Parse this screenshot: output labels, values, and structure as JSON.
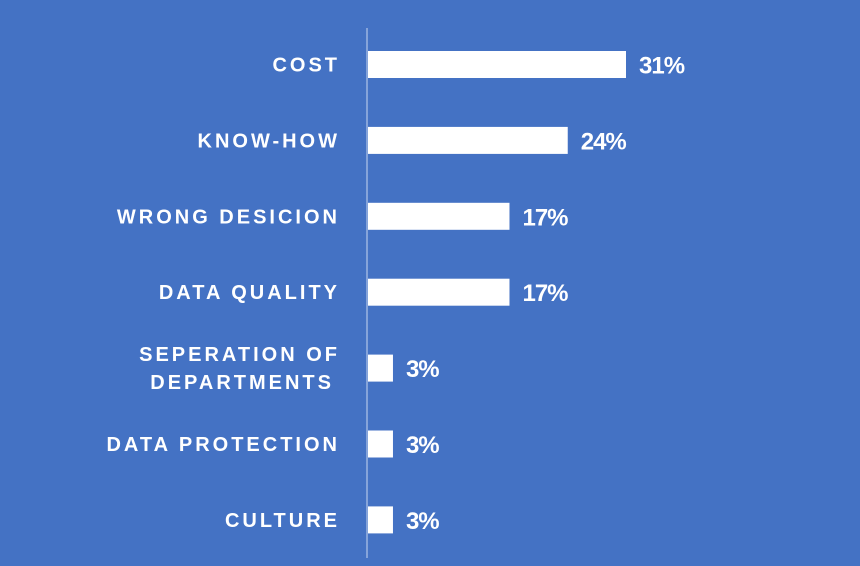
{
  "chart_data": {
    "type": "bar",
    "orientation": "horizontal",
    "categories": [
      [
        "COST"
      ],
      [
        "KNOW-HOW"
      ],
      [
        "WRONG DESICION"
      ],
      [
        "DATA QUALITY"
      ],
      [
        "SEPERATION OF",
        "DEPARTMENTS"
      ],
      [
        "DATA PROTECTION"
      ],
      [
        "CULTURE"
      ]
    ],
    "values": [
      31,
      24,
      17,
      17,
      3,
      3,
      3
    ],
    "value_labels": [
      "31%",
      "24%",
      "17%",
      "17%",
      "3%",
      "3%",
      "3%"
    ],
    "xlim": [
      0,
      31
    ],
    "grid": false,
    "colors": {
      "background": "#4472c4",
      "bar": "#ffffff",
      "axis": "#c9d6ef",
      "text": "#ffffff"
    }
  }
}
